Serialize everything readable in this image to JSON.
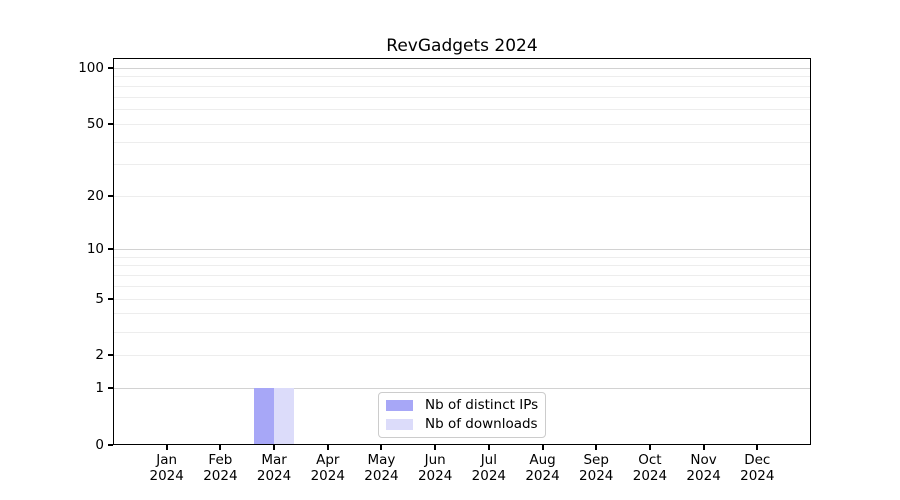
{
  "title": "RevGadgets 2024",
  "chart_data": {
    "type": "bar",
    "title": "RevGadgets 2024",
    "categories": [
      {
        "month": "Jan",
        "year": "2024"
      },
      {
        "month": "Feb",
        "year": "2024"
      },
      {
        "month": "Mar",
        "year": "2024"
      },
      {
        "month": "Apr",
        "year": "2024"
      },
      {
        "month": "May",
        "year": "2024"
      },
      {
        "month": "Jun",
        "year": "2024"
      },
      {
        "month": "Jul",
        "year": "2024"
      },
      {
        "month": "Aug",
        "year": "2024"
      },
      {
        "month": "Sep",
        "year": "2024"
      },
      {
        "month": "Oct",
        "year": "2024"
      },
      {
        "month": "Nov",
        "year": "2024"
      },
      {
        "month": "Dec",
        "year": "2024"
      }
    ],
    "series": [
      {
        "name": "Nb of distinct IPs",
        "color": "#a7a7f7",
        "values": [
          0,
          0,
          1,
          0,
          0,
          0,
          0,
          0,
          0,
          0,
          0,
          0
        ]
      },
      {
        "name": "Nb of downloads",
        "color": "#dcdcfa",
        "values": [
          0,
          0,
          1,
          0,
          0,
          0,
          0,
          0,
          0,
          0,
          0,
          0
        ]
      }
    ],
    "xlabel": "",
    "ylabel": "",
    "yscale": "log1p",
    "ylim": [
      0,
      113
    ],
    "y_ticks": [
      0,
      1,
      2,
      5,
      10,
      20,
      50,
      100
    ],
    "y_major_gridlines": [
      1,
      10,
      100
    ],
    "y_minor_gridlines": [
      2,
      3,
      4,
      5,
      6,
      7,
      8,
      9,
      20,
      30,
      40,
      50,
      60,
      70,
      80,
      90
    ],
    "grid": true,
    "legend": {
      "position": "lower center",
      "border_color": "#cccccc"
    }
  },
  "colors": {
    "bar_distinct_ips": "#a7a7f7",
    "bar_downloads": "#dcdcfa",
    "major_grid": "#d2d2d2",
    "minor_grid": "#ededed",
    "axis": "#000000",
    "background": "#ffffff"
  }
}
